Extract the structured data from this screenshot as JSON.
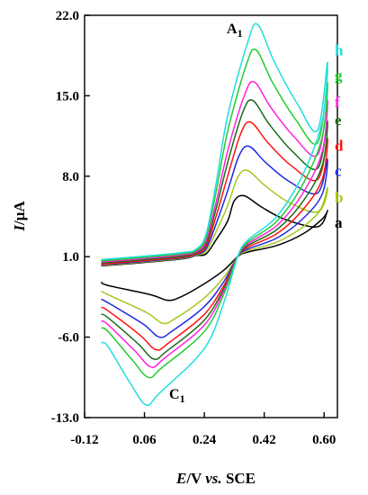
{
  "chart_data": {
    "type": "line",
    "title": "",
    "xlabel_parts": [
      "E",
      "/V ",
      "vs.",
      " SCE"
    ],
    "ylabel_parts": [
      "I",
      "/μA"
    ],
    "xlim": [
      -0.12,
      0.64
    ],
    "ylim": [
      -13.0,
      22.0
    ],
    "x_ticks": [
      -0.12,
      0.06,
      0.24,
      0.42,
      0.6
    ],
    "x_tick_labels": [
      "-0.12",
      "0.06",
      "0.24",
      "0.42",
      "0.60"
    ],
    "y_ticks": [
      -13.0,
      -6.0,
      1.0,
      8.0,
      15.0,
      22.0
    ],
    "y_tick_labels": [
      "-13.0",
      "-6.0",
      "1.0",
      "8.0",
      "15.0",
      "22.0"
    ],
    "grid": false,
    "legend": "inline labels at right end of curves",
    "annotations": [
      {
        "text": "A",
        "sub": "1",
        "x": 0.34,
        "y": 21.1
      },
      {
        "text": "C",
        "sub": "1",
        "x": 0.08,
        "y": -11.9
      }
    ],
    "curve_template": {
      "start_x": -0.07,
      "vertex_x": 0.61,
      "center": {
        "x": 0.34,
        "y": 1.0
      }
    },
    "series": [
      {
        "name": "a",
        "color": "#000000",
        "anodic_peak": {
          "x": 0.36,
          "y": 6.3
        },
        "cathodic_peak": {
          "x": 0.13,
          "y": -2.8
        },
        "start_upper": 0.2,
        "start_lower": -1.2,
        "vertex_upper": 5.0,
        "vertex_lower": 4.3,
        "label_y": 4.0
      },
      {
        "name": "b",
        "color": "#a5c81f",
        "anodic_peak": {
          "x": 0.37,
          "y": 8.5
        },
        "cathodic_peak": {
          "x": 0.115,
          "y": -4.8
        },
        "start_upper": 0.25,
        "start_lower": -2.0,
        "vertex_upper": 7.0,
        "vertex_lower": 5.3,
        "label_y": 6.2
      },
      {
        "name": "c",
        "color": "#1f2be0",
        "anodic_peak": {
          "x": 0.375,
          "y": 10.6
        },
        "cathodic_peak": {
          "x": 0.105,
          "y": -6.0
        },
        "start_upper": 0.3,
        "start_lower": -2.7,
        "vertex_upper": 9.5,
        "vertex_lower": 6.5,
        "label_y": 8.5
      },
      {
        "name": "d",
        "color": "#ff1111",
        "anodic_peak": {
          "x": 0.38,
          "y": 12.7
        },
        "cathodic_peak": {
          "x": 0.095,
          "y": -7.1
        },
        "start_upper": 0.35,
        "start_lower": -3.4,
        "vertex_upper": 11.3,
        "vertex_lower": 7.8,
        "label_y": 10.7
      },
      {
        "name": "e",
        "color": "#1a6b1a",
        "anodic_peak": {
          "x": 0.385,
          "y": 14.6
        },
        "cathodic_peak": {
          "x": 0.088,
          "y": -7.9
        },
        "start_upper": 0.45,
        "start_lower": -4.0,
        "vertex_upper": 12.8,
        "vertex_lower": 9.0,
        "label_y": 12.9
      },
      {
        "name": "f",
        "color": "#ff22dd",
        "anodic_peak": {
          "x": 0.39,
          "y": 16.2
        },
        "cathodic_peak": {
          "x": 0.08,
          "y": -8.6
        },
        "start_upper": 0.55,
        "start_lower": -4.6,
        "vertex_upper": 14.6,
        "vertex_lower": 10.2,
        "label_y": 14.5
      },
      {
        "name": "g",
        "color": "#22cc33",
        "anodic_peak": {
          "x": 0.395,
          "y": 19.0
        },
        "cathodic_peak": {
          "x": 0.072,
          "y": -9.5
        },
        "start_upper": 0.65,
        "start_lower": -5.2,
        "vertex_upper": 16.2,
        "vertex_lower": 11.5,
        "label_y": 16.8
      },
      {
        "name": "h",
        "color": "#22dddd",
        "anodic_peak": {
          "x": 0.4,
          "y": 21.2
        },
        "cathodic_peak": {
          "x": 0.065,
          "y": -11.9
        },
        "start_upper": 0.75,
        "start_lower": -6.5,
        "vertex_upper": 17.9,
        "vertex_lower": 12.9,
        "label_y": 19.0
      }
    ]
  }
}
